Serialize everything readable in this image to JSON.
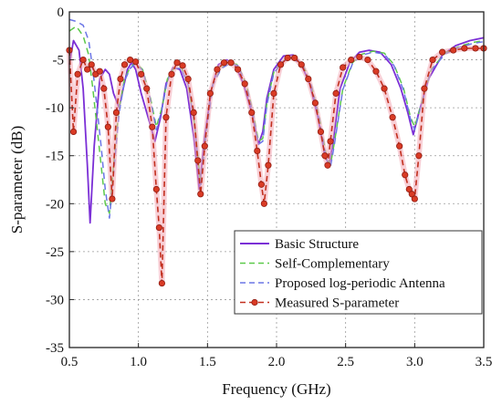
{
  "chart_data": {
    "type": "line",
    "title": "",
    "xlabel": "Frequency (GHz)",
    "ylabel": "S-parameter (dB)",
    "xlim": [
      0.5,
      3.5
    ],
    "ylim": [
      -35,
      0
    ],
    "xticks": [
      0.5,
      1.0,
      1.5,
      2.0,
      2.5,
      3.0,
      3.5
    ],
    "xtick_labels": [
      "0.5",
      "1.0",
      "1.5",
      "2.0",
      "2.5",
      "3.0",
      "3.5"
    ],
    "yticks": [
      0,
      -5,
      -10,
      -15,
      -20,
      -25,
      -30,
      -35
    ],
    "ytick_labels": [
      "0",
      "-5",
      "-10",
      "-15",
      "-20",
      "-25",
      "-30",
      "-35"
    ],
    "grid": true,
    "legend_position": "lower-right",
    "series": [
      {
        "name": "Basic Structure",
        "color": "#7b2fd6",
        "style": "solid",
        "x": [
          0.5,
          0.53,
          0.57,
          0.6,
          0.63,
          0.65,
          0.68,
          0.72,
          0.76,
          0.79,
          0.82,
          0.86,
          0.89,
          0.92,
          0.95,
          0.98,
          1.02,
          1.07,
          1.12,
          1.16,
          1.2,
          1.25,
          1.3,
          1.35,
          1.4,
          1.44,
          1.48,
          1.53,
          1.58,
          1.64,
          1.7,
          1.76,
          1.82,
          1.87,
          1.9,
          1.93,
          1.98,
          2.05,
          2.12,
          2.18,
          2.24,
          2.3,
          2.35,
          2.38,
          2.41,
          2.46,
          2.53,
          2.6,
          2.67,
          2.75,
          2.83,
          2.9,
          2.95,
          2.99,
          3.03,
          3.1,
          3.2,
          3.3,
          3.4,
          3.5
        ],
        "y": [
          -5.5,
          -3.0,
          -4.0,
          -8.0,
          -16.0,
          -22.0,
          -14.0,
          -7.0,
          -6.0,
          -6.5,
          -8.5,
          -10.0,
          -8.0,
          -6.0,
          -5.3,
          -6.0,
          -8.5,
          -11.0,
          -13.5,
          -11.0,
          -7.5,
          -5.8,
          -6.0,
          -8.0,
          -13.0,
          -18.5,
          -13.0,
          -8.0,
          -5.5,
          -5.0,
          -5.5,
          -7.5,
          -10.5,
          -13.8,
          -12.5,
          -9.0,
          -6.0,
          -4.6,
          -4.5,
          -5.5,
          -7.5,
          -11.0,
          -15.0,
          -16.0,
          -13.5,
          -8.0,
          -5.3,
          -4.2,
          -4.0,
          -4.2,
          -5.5,
          -8.0,
          -10.5,
          -12.8,
          -10.5,
          -7.0,
          -4.5,
          -3.5,
          -3.0,
          -2.7
        ]
      },
      {
        "name": "Self-Complementary",
        "color": "#5cc94a",
        "style": "dashed",
        "x": [
          0.5,
          0.55,
          0.6,
          0.64,
          0.67,
          0.7,
          0.73,
          0.76,
          0.79,
          0.82,
          0.86,
          0.9,
          0.94,
          0.98,
          1.03,
          1.08,
          1.13,
          1.17,
          1.21,
          1.26,
          1.31,
          1.36,
          1.41,
          1.45,
          1.49,
          1.54,
          1.6,
          1.66,
          1.72,
          1.78,
          1.83,
          1.87,
          1.9,
          1.93,
          1.98,
          2.05,
          2.12,
          2.19,
          2.25,
          2.31,
          2.36,
          2.39,
          2.42,
          2.48,
          2.55,
          2.62,
          2.7,
          2.78,
          2.85,
          2.92,
          2.97,
          3.0,
          3.04,
          3.12,
          3.22,
          3.32,
          3.42,
          3.5
        ],
        "y": [
          -2.0,
          -1.5,
          -2.5,
          -4.5,
          -8.0,
          -12.0,
          -16.0,
          -20.0,
          -21.0,
          -16.0,
          -10.0,
          -7.0,
          -5.8,
          -5.3,
          -6.0,
          -8.5,
          -12.0,
          -10.0,
          -7.0,
          -5.8,
          -5.8,
          -7.5,
          -12.0,
          -18.0,
          -12.5,
          -7.5,
          -5.8,
          -5.3,
          -5.5,
          -7.5,
          -10.5,
          -13.5,
          -13.2,
          -9.5,
          -6.3,
          -5.0,
          -4.8,
          -5.5,
          -7.5,
          -11.0,
          -15.0,
          -16.0,
          -13.5,
          -8.0,
          -5.3,
          -4.4,
          -4.1,
          -4.3,
          -5.5,
          -8.0,
          -11.0,
          -12.0,
          -10.0,
          -6.0,
          -4.3,
          -3.6,
          -3.2,
          -3.0
        ]
      },
      {
        "name": "Proposed log-periodic Antenna",
        "color": "#6b76e6",
        "style": "dashed",
        "x": [
          0.5,
          0.55,
          0.6,
          0.64,
          0.67,
          0.7,
          0.73,
          0.76,
          0.79,
          0.82,
          0.86,
          0.9,
          0.94,
          0.98,
          1.03,
          1.08,
          1.13,
          1.17,
          1.21,
          1.26,
          1.31,
          1.36,
          1.41,
          1.45,
          1.49,
          1.54,
          1.6,
          1.66,
          1.72,
          1.78,
          1.83,
          1.87,
          1.9,
          1.93,
          1.98,
          2.05,
          2.12,
          2.19,
          2.25,
          2.31,
          2.36,
          2.39,
          2.42,
          2.48,
          2.55,
          2.62,
          2.7,
          2.78,
          2.85,
          2.92,
          2.97,
          3.0,
          3.04,
          3.12,
          3.22,
          3.32,
          3.42,
          3.5
        ],
        "y": [
          -0.8,
          -1.0,
          -1.4,
          -3.0,
          -6.0,
          -10.0,
          -14.0,
          -18.5,
          -21.5,
          -17.0,
          -10.5,
          -7.2,
          -5.9,
          -5.4,
          -6.1,
          -8.7,
          -12.3,
          -10.2,
          -7.1,
          -5.9,
          -5.9,
          -7.6,
          -12.2,
          -18.3,
          -12.8,
          -7.6,
          -5.9,
          -5.4,
          -5.6,
          -7.6,
          -10.7,
          -13.8,
          -13.5,
          -9.7,
          -6.4,
          -5.1,
          -4.9,
          -5.6,
          -7.6,
          -11.2,
          -15.3,
          -16.2,
          -13.7,
          -8.1,
          -5.4,
          -4.5,
          -4.2,
          -4.4,
          -5.6,
          -8.2,
          -11.2,
          -12.3,
          -10.2,
          -6.1,
          -4.4,
          -3.7,
          -3.3,
          -3.1
        ]
      },
      {
        "name": "Measured S-parameter",
        "color": "#c22f1e",
        "style": "dashed-markers",
        "x": [
          0.5,
          0.53,
          0.56,
          0.6,
          0.63,
          0.66,
          0.69,
          0.72,
          0.75,
          0.78,
          0.81,
          0.84,
          0.87,
          0.9,
          0.94,
          0.98,
          1.02,
          1.06,
          1.1,
          1.13,
          1.15,
          1.17,
          1.2,
          1.24,
          1.28,
          1.32,
          1.36,
          1.4,
          1.43,
          1.45,
          1.48,
          1.52,
          1.57,
          1.62,
          1.67,
          1.72,
          1.77,
          1.82,
          1.86,
          1.89,
          1.91,
          1.94,
          1.98,
          2.03,
          2.08,
          2.13,
          2.18,
          2.23,
          2.28,
          2.32,
          2.35,
          2.37,
          2.39,
          2.43,
          2.48,
          2.54,
          2.6,
          2.66,
          2.72,
          2.78,
          2.84,
          2.89,
          2.93,
          2.96,
          2.98,
          3.0,
          3.03,
          3.07,
          3.13,
          3.2,
          3.28,
          3.36,
          3.44,
          3.5
        ],
        "y": [
          -4.0,
          -12.5,
          -6.5,
          -5.0,
          -6.0,
          -5.5,
          -6.5,
          -6.2,
          -8.0,
          -12.0,
          -19.5,
          -10.5,
          -7.0,
          -5.5,
          -5.0,
          -5.2,
          -6.5,
          -8.0,
          -12.0,
          -18.5,
          -22.5,
          -28.3,
          -11.0,
          -6.5,
          -5.3,
          -5.6,
          -7.0,
          -10.5,
          -15.5,
          -19.0,
          -14.0,
          -8.5,
          -6.0,
          -5.3,
          -5.3,
          -6.0,
          -7.5,
          -10.5,
          -14.5,
          -18.0,
          -20.0,
          -16.0,
          -8.5,
          -5.5,
          -4.8,
          -4.8,
          -5.5,
          -7.0,
          -9.5,
          -12.5,
          -15.0,
          -16.0,
          -13.5,
          -8.5,
          -5.8,
          -5.0,
          -4.7,
          -5.0,
          -6.2,
          -8.0,
          -11.0,
          -14.0,
          -17.0,
          -18.5,
          -19.0,
          -19.5,
          -15.0,
          -8.0,
          -5.0,
          -4.2,
          -4.0,
          -3.8,
          -3.8,
          -3.8
        ]
      }
    ]
  }
}
